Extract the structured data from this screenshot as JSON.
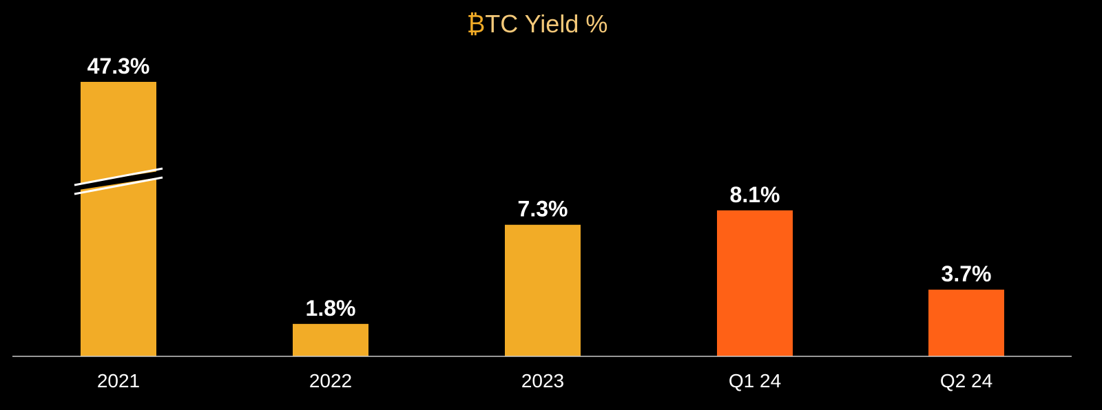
{
  "chart_data": {
    "type": "bar",
    "title_symbol": "₿",
    "title_text": "TC Yield %",
    "categories": [
      "2021",
      "2022",
      "2023",
      "Q1 24",
      "Q2 24"
    ],
    "values": [
      47.3,
      1.8,
      7.3,
      8.1,
      3.7
    ],
    "value_labels": [
      "47.3%",
      "1.8%",
      "7.3%",
      "8.1%",
      "3.7%"
    ],
    "bar_colors": [
      "#F2AC27",
      "#F2AC27",
      "#F2AC27",
      "#FF6116",
      "#FF6116"
    ],
    "broken_bar_index": 0,
    "xlabel": "",
    "ylabel": "",
    "grid": false,
    "colors": {
      "background": "#000000",
      "title_symbol": "#F2AC27",
      "title_text": "#F5C979",
      "axis_line": "#cccccc",
      "text": "#ffffff"
    }
  }
}
